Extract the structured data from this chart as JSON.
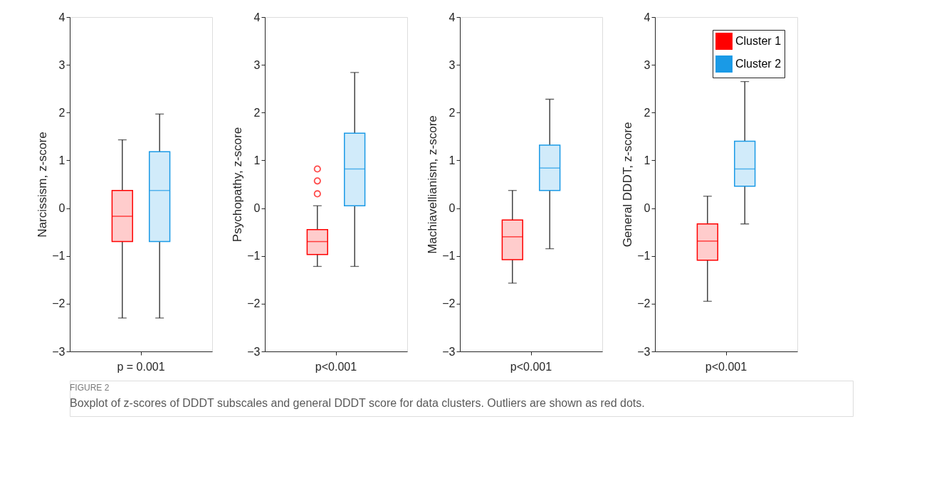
{
  "chart_data": [
    {
      "type": "box",
      "categories": [
        "p = 0.001"
      ],
      "ylabel": "Narcissism, z-score",
      "ylim": [
        -3,
        4
      ],
      "yticks": [
        -3,
        -2,
        -1,
        0,
        1,
        2,
        3,
        4
      ],
      "series": [
        {
          "color": "#ff0000",
          "boxes": [
            {
              "low": -2.3,
              "q1": -0.7,
              "median": -0.17,
              "q3": 0.37,
              "high": 1.43
            }
          ]
        },
        {
          "color": "#1a9ae6",
          "boxes": [
            {
              "low": -2.3,
              "q1": -0.7,
              "median": 0.37,
              "q3": 1.18,
              "high": 1.97
            }
          ]
        }
      ]
    },
    {
      "type": "box",
      "categories": [
        "p<0.001"
      ],
      "ylabel": "Psychopathy, z-score",
      "ylim": [
        -3,
        4
      ],
      "yticks": [
        -3,
        -2,
        -1,
        0,
        1,
        2,
        3,
        4
      ],
      "series": [
        {
          "color": "#ff0000",
          "boxes": [
            {
              "low": -1.22,
              "q1": -0.97,
              "median": -0.7,
              "q3": -0.45,
              "high": 0.05,
              "outliers": [
                0.3,
                0.57,
                0.82
              ]
            }
          ]
        },
        {
          "color": "#1a9ae6",
          "boxes": [
            {
              "low": -1.22,
              "q1": 0.05,
              "median": 0.82,
              "q3": 1.57,
              "high": 2.84
            }
          ]
        }
      ]
    },
    {
      "type": "box",
      "categories": [
        "p<0.001"
      ],
      "ylabel": "Machiavellianism, z-score",
      "ylim": [
        -3,
        4
      ],
      "yticks": [
        -3,
        -2,
        -1,
        0,
        1,
        2,
        3,
        4
      ],
      "series": [
        {
          "color": "#ff0000",
          "boxes": [
            {
              "low": -1.57,
              "q1": -1.08,
              "median": -0.6,
              "q3": -0.25,
              "high": 0.37
            }
          ]
        },
        {
          "color": "#1a9ae6",
          "boxes": [
            {
              "low": -0.85,
              "q1": 0.37,
              "median": 0.84,
              "q3": 1.32,
              "high": 2.28
            }
          ]
        }
      ]
    },
    {
      "type": "box",
      "categories": [
        "p<0.001"
      ],
      "ylabel": "General DDDT, z-score",
      "ylim": [
        -3,
        4
      ],
      "yticks": [
        -3,
        -2,
        -1,
        0,
        1,
        2,
        3,
        4
      ],
      "legend": "top right",
      "series": [
        {
          "name": "Cluster 1",
          "color": "#ff0000",
          "boxes": [
            {
              "low": -1.95,
              "q1": -1.09,
              "median": -0.69,
              "q3": -0.33,
              "high": 0.25
            }
          ]
        },
        {
          "name": "Cluster 2",
          "color": "#1a9ae6",
          "boxes": [
            {
              "low": -0.33,
              "q1": 0.46,
              "median": 0.82,
              "q3": 1.4,
              "high": 2.65
            }
          ]
        }
      ],
      "annotations": [
        "FIGURE 2",
        "Boxplot of z-scores of DDDT subscales and general DDDT score for data clusters. Outliers are shown as red dots."
      ]
    }
  ]
}
